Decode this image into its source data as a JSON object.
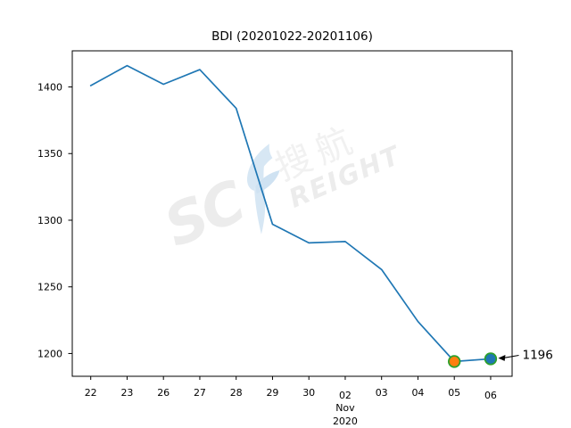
{
  "chart_data": {
    "type": "line",
    "title": "BDI (20201022-20201106)",
    "categories": [
      "22",
      "23",
      "26",
      "27",
      "28",
      "29",
      "30",
      "02",
      "03",
      "04",
      "05",
      "06"
    ],
    "x_month_label": {
      "category": "02",
      "lines": [
        "Nov",
        "2020"
      ]
    },
    "series": [
      {
        "name": "BDI",
        "values": [
          1401,
          1416,
          1402,
          1413,
          1384,
          1297,
          1283,
          1284,
          1263,
          1224,
          1194,
          1196
        ],
        "color": "#1f77b4"
      }
    ],
    "xlabel": "",
    "ylabel": "",
    "yticks": [
      1400,
      1350,
      1300,
      1250,
      1200
    ],
    "ylim": [
      1182.9,
      1427.1
    ],
    "grid": false,
    "legend": "none",
    "markers": [
      {
        "category": "05",
        "value": 1194,
        "fill": "#ff7f0e",
        "edge": "#2ca02c",
        "name": "lowest-point-marker"
      },
      {
        "category": "06",
        "value": 1196,
        "fill": "#1f77b4",
        "edge": "#2ca02c",
        "name": "latest-point-marker"
      }
    ],
    "annotation": {
      "text": "1196",
      "category": "06",
      "value": 1196,
      "arrow_color": "#000000"
    },
    "axis_color": "#000000",
    "background_color": "#ffffff"
  },
  "watermark": {
    "prefix": "SC",
    "swoosh": "F",
    "chinese": "搜航",
    "suffix": "REIGHT",
    "text_color": "#ececec",
    "swoosh_color": "#d7e7f4"
  }
}
